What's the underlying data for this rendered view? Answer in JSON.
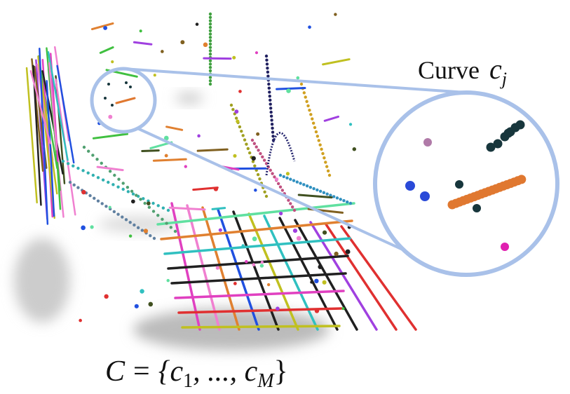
{
  "curve_label": {
    "word": "Curve",
    "symbol": "c",
    "subscript": "j"
  },
  "set_label": {
    "symbol": "C",
    "equals": "=",
    "open": "{c",
    "first_index": "1",
    "middle": ", ..., c",
    "last_index": "M",
    "close": "}"
  }
}
